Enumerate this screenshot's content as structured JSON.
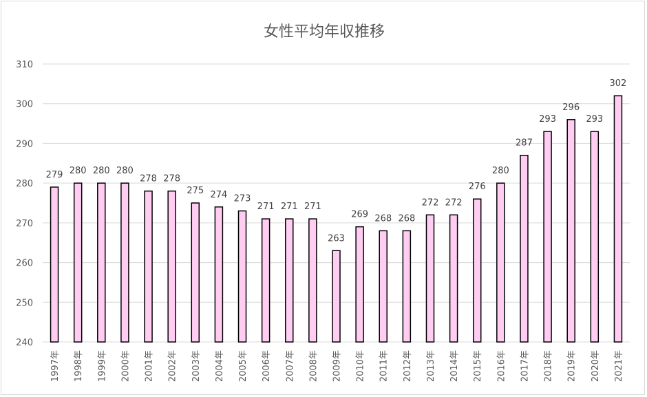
{
  "chart_data": {
    "type": "bar",
    "title": "女性平均年収推移",
    "xlabel": "",
    "ylabel": "",
    "ylim": [
      240,
      310
    ],
    "yticks": [
      240,
      250,
      260,
      270,
      280,
      290,
      300,
      310
    ],
    "grid": "horizontal",
    "data_labels": true,
    "bar_fill": "#ffccf2",
    "bar_stroke": "#000000",
    "categories": [
      "1997年",
      "1998年",
      "1999年",
      "2000年",
      "2001年",
      "2002年",
      "2003年",
      "2004年",
      "2005年",
      "2006年",
      "2007年",
      "2008年",
      "2009年",
      "2010年",
      "2011年",
      "2012年",
      "2013年",
      "2014年",
      "2015年",
      "2016年",
      "2017年",
      "2018年",
      "2019年",
      "2020年",
      "2021年"
    ],
    "values": [
      279,
      280,
      280,
      280,
      278,
      278,
      275,
      274,
      273,
      271,
      271,
      271,
      263,
      269,
      268,
      268,
      272,
      272,
      276,
      280,
      287,
      293,
      296,
      293,
      302
    ]
  }
}
